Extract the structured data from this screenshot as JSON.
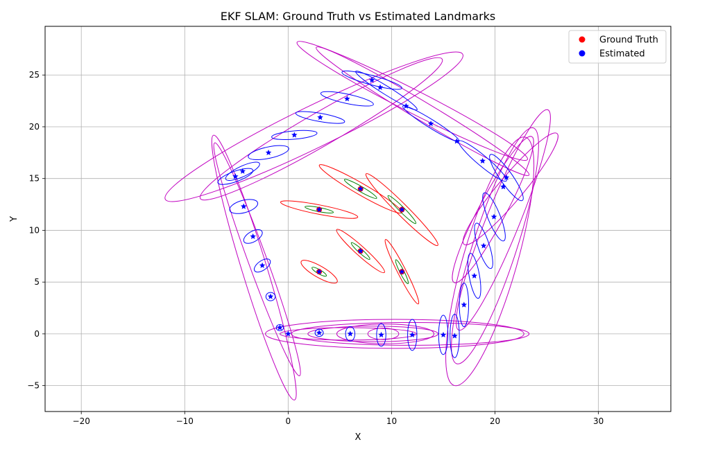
{
  "chart_data": {
    "type": "scatter",
    "title": "EKF SLAM: Ground Truth vs Estimated Landmarks",
    "xlabel": "X",
    "ylabel": "Y",
    "xlim": [
      -23.5,
      37
    ],
    "ylim": [
      -7.5,
      29.7
    ],
    "xticks": [
      -20,
      -10,
      0,
      10,
      20,
      30
    ],
    "yticks": [
      -5,
      0,
      5,
      10,
      15,
      20,
      25
    ],
    "xtick_labels": [
      "−20",
      "−10",
      "0",
      "10",
      "20",
      "30"
    ],
    "ytick_labels": [
      "−5",
      "0",
      "5",
      "10",
      "15",
      "20",
      "25"
    ],
    "grid": true,
    "legend_position": "top-right",
    "legend": [
      {
        "label": "Ground Truth",
        "color": "#ff0000",
        "marker": "circle"
      },
      {
        "label": "Estimated",
        "color": "#0000ff",
        "marker": "circle"
      }
    ],
    "colors": {
      "ground_truth": "#ff0000",
      "estimated": "#0000ff",
      "covariance_estimated": "#0000ff",
      "covariance_large": "#c000c0",
      "covariance_inner_red": "#ff0000",
      "covariance_inner_green": "#008000"
    },
    "series": [
      {
        "name": "Ground Truth",
        "marker": "circle",
        "points": [
          [
            3,
            6
          ],
          [
            3,
            12
          ],
          [
            7,
            8
          ],
          [
            7,
            14
          ],
          [
            11,
            6
          ],
          [
            11,
            12
          ]
        ]
      },
      {
        "name": "Estimated",
        "marker": "star",
        "points": [
          [
            3,
            6
          ],
          [
            3,
            12
          ],
          [
            7,
            8
          ],
          [
            7,
            14
          ],
          [
            11,
            6
          ],
          [
            11,
            12
          ],
          [
            0,
            0
          ],
          [
            3,
            0.1
          ],
          [
            6,
            0
          ],
          [
            9,
            -0.1
          ],
          [
            12,
            -0.1
          ],
          [
            15,
            -0.1
          ],
          [
            16.1,
            -0.2
          ],
          [
            -0.8,
            0.6
          ],
          [
            -1.7,
            3.6
          ],
          [
            -2.5,
            6.6
          ],
          [
            -3.4,
            9.4
          ],
          [
            -4.3,
            12.3
          ],
          [
            -5.1,
            15.2
          ],
          [
            -4.4,
            15.7
          ],
          [
            -1.9,
            17.5
          ],
          [
            0.6,
            19.2
          ],
          [
            3.1,
            20.9
          ],
          [
            5.7,
            22.7
          ],
          [
            8.1,
            24.5
          ],
          [
            8.9,
            23.8
          ],
          [
            11.4,
            22
          ],
          [
            13.8,
            20.3
          ],
          [
            16.3,
            18.6
          ],
          [
            18.8,
            16.7
          ],
          [
            21.1,
            15.1
          ],
          [
            20.8,
            14.2
          ],
          [
            19.9,
            11.3
          ],
          [
            18.9,
            8.5
          ],
          [
            18,
            5.6
          ],
          [
            17,
            2.8
          ]
        ]
      }
    ],
    "covariance_ellipses": [
      {
        "group": "inner_red",
        "cx": 3,
        "cy": 6,
        "rx": 2,
        "ry": 0.55,
        "angle": -30
      },
      {
        "group": "inner_red",
        "cx": 3,
        "cy": 12,
        "rx": 3.8,
        "ry": 0.45,
        "angle": -11
      },
      {
        "group": "inner_red",
        "cx": 7,
        "cy": 8,
        "rx": 3.1,
        "ry": 0.45,
        "angle": -42
      },
      {
        "group": "inner_red",
        "cx": 7,
        "cy": 14,
        "rx": 4.6,
        "ry": 0.55,
        "angle": -30
      },
      {
        "group": "inner_red",
        "cx": 11,
        "cy": 6,
        "rx": 3.5,
        "ry": 0.4,
        "angle": -63
      },
      {
        "group": "inner_red",
        "cx": 11,
        "cy": 12,
        "rx": 4.9,
        "ry": 0.55,
        "angle": -45
      },
      {
        "group": "inner_green",
        "cx": 3,
        "cy": 6,
        "rx": 0.8,
        "ry": 0.2,
        "angle": -30
      },
      {
        "group": "inner_green",
        "cx": 3,
        "cy": 12,
        "rx": 1.4,
        "ry": 0.2,
        "angle": -11
      },
      {
        "group": "inner_green",
        "cx": 7,
        "cy": 8,
        "rx": 1.2,
        "ry": 0.2,
        "angle": -42
      },
      {
        "group": "inner_green",
        "cx": 7,
        "cy": 14,
        "rx": 1.8,
        "ry": 0.25,
        "angle": -30
      },
      {
        "group": "inner_green",
        "cx": 11,
        "cy": 6,
        "rx": 1.3,
        "ry": 0.2,
        "angle": -63
      },
      {
        "group": "inner_green",
        "cx": 11,
        "cy": 12,
        "rx": 1.9,
        "ry": 0.25,
        "angle": -45
      },
      {
        "group": "estimated",
        "cx": 3,
        "cy": 0.1,
        "rx": 0.4,
        "ry": 0.35,
        "angle": 0
      },
      {
        "group": "estimated",
        "cx": 6,
        "cy": 0,
        "rx": 0.45,
        "ry": 0.7,
        "angle": 0
      },
      {
        "group": "estimated",
        "cx": 9,
        "cy": -0.1,
        "rx": 0.45,
        "ry": 1.1,
        "angle": 0
      },
      {
        "group": "estimated",
        "cx": 12,
        "cy": -0.1,
        "rx": 0.45,
        "ry": 1.5,
        "angle": 0
      },
      {
        "group": "estimated",
        "cx": 15,
        "cy": -0.1,
        "rx": 0.45,
        "ry": 1.9,
        "angle": 0
      },
      {
        "group": "estimated",
        "cx": 16.1,
        "cy": -0.2,
        "rx": 0.45,
        "ry": 2.1,
        "angle": 0
      },
      {
        "group": "estimated",
        "cx": 17,
        "cy": 2.8,
        "rx": 0.45,
        "ry": 2.1,
        "angle": 0
      },
      {
        "group": "estimated",
        "cx": 18,
        "cy": 5.6,
        "rx": 0.5,
        "ry": 2.2,
        "angle": 10
      },
      {
        "group": "estimated",
        "cx": 18.9,
        "cy": 8.5,
        "rx": 0.55,
        "ry": 2.3,
        "angle": 18
      },
      {
        "group": "estimated",
        "cx": 19.9,
        "cy": 11.3,
        "rx": 0.6,
        "ry": 2.5,
        "angle": 22
      },
      {
        "group": "estimated",
        "cx": 21.1,
        "cy": 15.1,
        "rx": 0.6,
        "ry": 2.7,
        "angle": 35
      },
      {
        "group": "estimated",
        "cx": 18.8,
        "cy": 16.7,
        "rx": 3.0,
        "ry": 0.5,
        "angle": -40
      },
      {
        "group": "estimated",
        "cx": 13.8,
        "cy": 20.3,
        "rx": 3.2,
        "ry": 0.4,
        "angle": -32
      },
      {
        "group": "estimated",
        "cx": 9.5,
        "cy": 23.5,
        "rx": 3.5,
        "ry": 0.4,
        "angle": -32
      },
      {
        "group": "estimated",
        "cx": 8.1,
        "cy": 24.5,
        "rx": 3.0,
        "ry": 0.45,
        "angle": -15
      },
      {
        "group": "estimated",
        "cx": 5.7,
        "cy": 22.7,
        "rx": 2.6,
        "ry": 0.45,
        "angle": -12
      },
      {
        "group": "estimated",
        "cx": 3.1,
        "cy": 20.9,
        "rx": 2.4,
        "ry": 0.4,
        "angle": -10
      },
      {
        "group": "estimated",
        "cx": 0.6,
        "cy": 19.2,
        "rx": 2.2,
        "ry": 0.4,
        "angle": 5
      },
      {
        "group": "estimated",
        "cx": -1.9,
        "cy": 17.5,
        "rx": 2.0,
        "ry": 0.55,
        "angle": 12
      },
      {
        "group": "estimated",
        "cx": -4.4,
        "cy": 15.7,
        "rx": 1.8,
        "ry": 0.5,
        "angle": 25
      },
      {
        "group": "estimated",
        "cx": -5.1,
        "cy": 15.2,
        "rx": 1.8,
        "ry": 0.5,
        "angle": 20
      },
      {
        "group": "estimated",
        "cx": -4.3,
        "cy": 12.3,
        "rx": 1.4,
        "ry": 0.6,
        "angle": 15
      },
      {
        "group": "estimated",
        "cx": -3.4,
        "cy": 9.4,
        "rx": 1.0,
        "ry": 0.5,
        "angle": 30
      },
      {
        "group": "estimated",
        "cx": -2.5,
        "cy": 6.6,
        "rx": 0.9,
        "ry": 0.45,
        "angle": 35
      },
      {
        "group": "estimated",
        "cx": -1.7,
        "cy": 3.6,
        "rx": 0.45,
        "ry": 0.4,
        "angle": 0
      },
      {
        "group": "estimated",
        "cx": -0.8,
        "cy": 0.6,
        "rx": 0.35,
        "ry": 0.3,
        "angle": 0
      },
      {
        "group": "large",
        "cx": 10.3,
        "cy": 0,
        "rx": 12.5,
        "ry": 1.4,
        "angle": 0
      },
      {
        "group": "large",
        "cx": 11.8,
        "cy": 0,
        "rx": 11.5,
        "ry": 1.1,
        "angle": 0
      },
      {
        "group": "large",
        "cx": 8.2,
        "cy": 0,
        "rx": 6.3,
        "ry": 0.75,
        "angle": 0
      },
      {
        "group": "large",
        "cx": 9.4,
        "cy": 0,
        "rx": 4.7,
        "ry": 0.95,
        "angle": 0
      },
      {
        "group": "large",
        "cx": 9.2,
        "cy": 0,
        "rx": 1.5,
        "ry": 0.55,
        "angle": 0
      },
      {
        "group": "large",
        "cx": 5.8,
        "cy": 0,
        "rx": 6.6,
        "ry": 0.6,
        "angle": 0
      },
      {
        "group": "large",
        "cx": 19.5,
        "cy": 7.0,
        "rx": 12.5,
        "ry": 2.6,
        "angle": 74
      },
      {
        "group": "large",
        "cx": 20.0,
        "cy": 8.5,
        "rx": 12.0,
        "ry": 2.1,
        "angle": 72
      },
      {
        "group": "large",
        "cx": 20.8,
        "cy": 11.0,
        "rx": 11.5,
        "ry": 1.6,
        "angle": 68
      },
      {
        "group": "large",
        "cx": 19.8,
        "cy": 12.0,
        "rx": 8.0,
        "ry": 1.3,
        "angle": 62
      },
      {
        "group": "large",
        "cx": 21.5,
        "cy": 14.0,
        "rx": 7.0,
        "ry": 1.2,
        "angle": 50
      },
      {
        "group": "large",
        "cx": 2.5,
        "cy": 20.0,
        "rx": 16.0,
        "ry": 2.0,
        "angle": 26
      },
      {
        "group": "large",
        "cx": 3.2,
        "cy": 19.8,
        "rx": 13.5,
        "ry": 1.6,
        "angle": 30
      },
      {
        "group": "large",
        "cx": 12.0,
        "cy": 22.5,
        "rx": 12.5,
        "ry": 1.1,
        "angle": -27
      },
      {
        "group": "large",
        "cx": 13.0,
        "cy": 21.5,
        "rx": 12.0,
        "ry": 0.9,
        "angle": -31
      },
      {
        "group": "large",
        "cx": -3.3,
        "cy": 6.4,
        "rx": 13.4,
        "ry": 1.2,
        "angle": -73
      },
      {
        "group": "large",
        "cx": -3.0,
        "cy": 7.2,
        "rx": 12.0,
        "ry": 0.9,
        "angle": -70
      }
    ]
  }
}
